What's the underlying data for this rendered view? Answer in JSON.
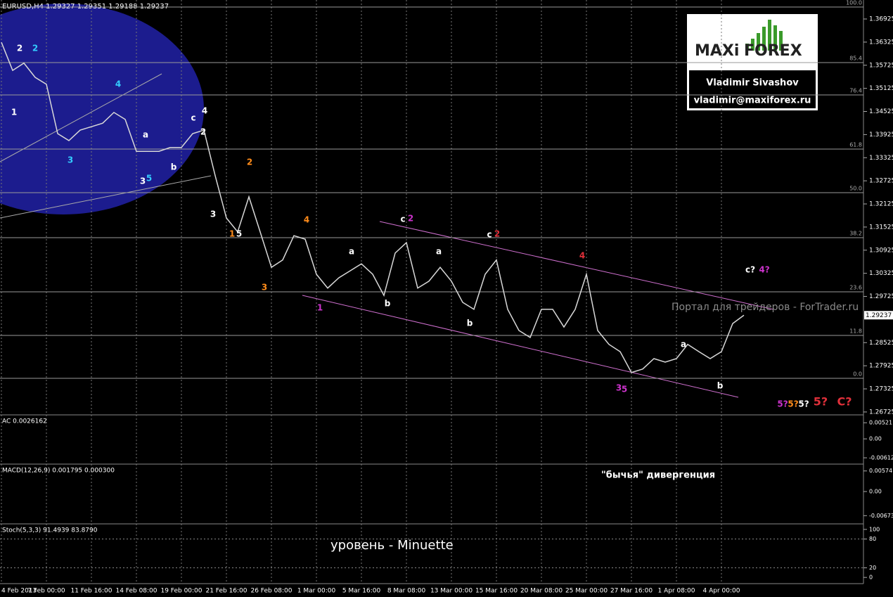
{
  "header": "EURUSD,H4  1.29327 1.29351 1.29188 1.29237",
  "watermark": "Портал для трейдеров - ForTrader.ru",
  "logo": {
    "brand_left": "MAXi",
    "brand_right": "FOREX",
    "name": "Vladimir Sivashov",
    "email": "vladimir@maxiforex.ru"
  },
  "chart_data": {
    "type": "line",
    "categories": [
      "4 Feb 2013",
      null,
      null,
      null,
      "7 Feb 00:00",
      null,
      null,
      null,
      "11 Feb 16:00",
      null,
      null,
      null,
      "14 Feb 08:00",
      null,
      null,
      null,
      "19 Feb 00:00",
      null,
      null,
      null,
      "21 Feb 16:00",
      null,
      null,
      null,
      "26 Feb 08:00",
      null,
      null,
      null,
      "1 Mar 00:00",
      null,
      null,
      null,
      "5 Mar 16:00",
      null,
      null,
      null,
      "8 Mar 08:00",
      null,
      null,
      null,
      "13 Mar 00:00",
      null,
      null,
      null,
      "15 Mar 16:00",
      null,
      null,
      null,
      "20 Mar 08:00",
      null,
      null,
      null,
      "25 Mar 00:00",
      null,
      null,
      null,
      "27 Mar 16:00",
      null,
      null,
      null,
      "1 Apr 08:00",
      null,
      null,
      null,
      "4 Apr 00:00",
      null,
      null
    ],
    "values": [
      1.3632,
      1.3559,
      1.3578,
      1.3541,
      1.3523,
      1.3395,
      1.3377,
      1.3404,
      1.3413,
      1.3422,
      1.345,
      1.3432,
      1.3349,
      1.3349,
      1.3349,
      1.3359,
      1.3359,
      1.3395,
      1.3404,
      1.3286,
      1.3176,
      1.314,
      1.3231,
      1.314,
      1.3048,
      1.3067,
      1.313,
      1.3121,
      1.303,
      1.2994,
      1.3021,
      1.3039,
      1.3057,
      1.303,
      1.2975,
      1.3085,
      1.3112,
      1.2994,
      1.3012,
      1.3048,
      1.3012,
      1.2957,
      1.2939,
      1.303,
      1.3067,
      1.2939,
      1.2884,
      1.2866,
      1.2939,
      1.2939,
      1.2893,
      1.2939,
      1.303,
      1.2884,
      1.2848,
      1.2829,
      1.2775,
      1.2784,
      1.2811,
      1.2802,
      1.2811,
      1.2848,
      1.2829,
      1.2811,
      1.2829,
      1.2902,
      1.29237
    ],
    "color": "#d8d8d8",
    "ylim": [
      1.2665,
      1.37418
    ],
    "yticks": [
      1.36925,
      1.36325,
      1.35725,
      1.35125,
      1.34525,
      1.33925,
      1.33325,
      1.32725,
      1.32125,
      1.31525,
      1.30925,
      1.30325,
      1.29725,
      1.28525,
      1.27925,
      1.27325,
      1.26725
    ],
    "grid": true,
    "fib_levels": [
      {
        "value": 100,
        "label": "100.0",
        "price": 1.37235
      },
      {
        "value": 85.4,
        "price": 1.35793
      },
      {
        "value": 76.4,
        "price": 1.34954
      },
      {
        "value": 61.8,
        "price": 1.33549
      },
      {
        "value": 50,
        "label": "50.0",
        "price": 1.32417
      },
      {
        "value": 38.2,
        "price": 1.31249
      },
      {
        "value": 23.6,
        "price": 1.29844
      },
      {
        "value": 11.8,
        "price": 1.28712
      },
      {
        "value": 0,
        "label": "0.0",
        "price": 1.27599
      }
    ],
    "wave_labels": [
      {
        "text": "2",
        "color": "#ffffff"
      },
      {
        "text": "2",
        "color": "#33ccff"
      },
      {
        "text": "1",
        "color": "#ffffff"
      },
      {
        "text": "3",
        "color": "#33ccff"
      },
      {
        "text": "4",
        "color": "#33ccff"
      },
      {
        "text": "a",
        "color": "#ffffff"
      },
      {
        "text": "b",
        "color": "#ffffff"
      },
      {
        "text": "3",
        "color": "#ffffff"
      },
      {
        "text": "5",
        "color": "#33ccff"
      },
      {
        "text": "c",
        "color": "#ffffff"
      },
      {
        "text": "4",
        "color": "#ffffff"
      },
      {
        "text": "2",
        "color": "#ffffff"
      },
      {
        "text": "2",
        "color": "#ff8c1a"
      },
      {
        "text": "3",
        "color": "#ffffff"
      },
      {
        "text": "1",
        "color": "#ff8c1a"
      },
      {
        "text": "5",
        "color": "#ffffff"
      },
      {
        "text": "3",
        "color": "#ff8c1a"
      },
      {
        "text": "4",
        "color": "#ff8c1a"
      },
      {
        "text": "1",
        "color": "#cc33cc"
      },
      {
        "text": "a",
        "color": "#ffffff"
      },
      {
        "text": "b",
        "color": "#ffffff"
      },
      {
        "text": "c",
        "color": "#ffffff"
      },
      {
        "text": "2",
        "color": "#cc33cc"
      },
      {
        "text": "a",
        "color": "#ffffff"
      },
      {
        "text": "b",
        "color": "#ffffff"
      },
      {
        "text": "c",
        "color": "#ffffff"
      },
      {
        "text": "2",
        "color": "#e0303a"
      },
      {
        "text": "4",
        "color": "#e0303a"
      },
      {
        "text": "3",
        "color": "#cc33cc"
      },
      {
        "text": "5",
        "color": "#cc33cc"
      },
      {
        "text": "a",
        "color": "#ffffff"
      },
      {
        "text": "b",
        "color": "#ffffff"
      },
      {
        "text": "c?",
        "color": "#ffffff"
      },
      {
        "text": "4?",
        "color": "#cc33cc"
      },
      {
        "text": "5?",
        "color": "#cc33cc"
      },
      {
        "text": "5?",
        "color": "#ff8c1a"
      },
      {
        "text": "5?",
        "color": "#ffffff"
      },
      {
        "text": "5?",
        "color": "#e0303a"
      },
      {
        "text": "C?",
        "color": "#e0303a"
      }
    ]
  },
  "panels": [
    {
      "title": "AC 0.0026162",
      "ylim": [
        -0.0077,
        0.0073
      ],
      "yticks": [
        0.00521,
        {
          "value": 0,
          "label": "0.00"
        },
        -0.00612
      ]
    },
    {
      "title": "MACD(12,26,9) 0.001795 0.000300",
      "annotation": "\"бычья\" дивергенция",
      "ylim": [
        -0.00863,
        0.00726
      ],
      "yticks": [
        0.00574,
        {
          "value": 0,
          "label": "0.00"
        },
        -0.00673
      ]
    },
    {
      "title": "Stoch(5,3,3) 91.4939 83.8790",
      "annotation": "уровень - Minuette",
      "ylim": [
        -10,
        108.6
      ],
      "yticks": [
        100,
        80,
        20,
        0
      ]
    }
  ]
}
